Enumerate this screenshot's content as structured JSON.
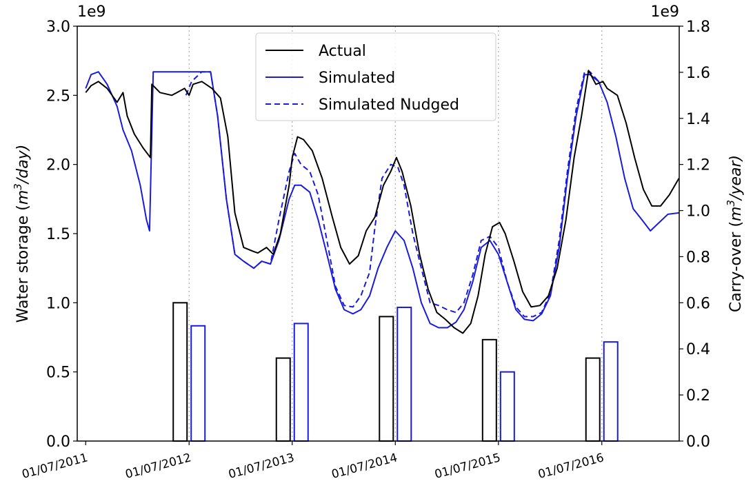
{
  "chart_data": {
    "type": "line",
    "xtick_labels": [
      "01/07/2011",
      "01/07/2012",
      "01/07/2013",
      "01/07/2014",
      "01/07/2015",
      "01/07/2016"
    ],
    "left_axis": {
      "label_main": "Water storage (",
      "label_unit": "m",
      "label_sup": "3",
      "label_rest": "/day)",
      "multiplier": "1e9",
      "ylim": [
        0,
        3.0
      ],
      "ticks": [
        "0.0",
        "0.5",
        "1.0",
        "1.5",
        "2.0",
        "2.5",
        "3.0"
      ]
    },
    "right_axis": {
      "label_main": "Carry-over (",
      "label_unit": "m",
      "label_sup": "3",
      "label_rest": "/year)",
      "multiplier": "1e9",
      "ylim": [
        0,
        1.8
      ],
      "ticks": [
        "0.0",
        "0.2",
        "0.4",
        "0.6",
        "0.8",
        "1.0",
        "1.2",
        "1.4",
        "1.6",
        "1.8"
      ]
    },
    "legend": {
      "position": "top-center",
      "entries": [
        "Actual",
        "Simulated",
        "Simulated Nudged"
      ]
    },
    "colors": {
      "actual": "#000000",
      "simulated": "#1a1adb"
    },
    "series": [
      {
        "name": "Actual",
        "style": "solid",
        "x": [
          "2011-07-01",
          "2011-07-20",
          "2011-08-15",
          "2011-09-15",
          "2011-10-20",
          "2011-11-10",
          "2011-11-25",
          "2011-12-20",
          "2012-01-20",
          "2012-02-15",
          "2012-02-20",
          "2012-03-20",
          "2012-05-01",
          "2012-06-15",
          "2012-07-01",
          "2012-07-15",
          "2012-08-15",
          "2012-09-20",
          "2012-10-20",
          "2012-11-15",
          "2012-12-10",
          "2013-01-10",
          "2013-02-15",
          "2013-03-01",
          "2013-04-01",
          "2013-04-25",
          "2013-05-20",
          "2013-06-20",
          "2013-07-01",
          "2013-07-20",
          "2013-08-10",
          "2013-09-10",
          "2013-10-15",
          "2013-11-20",
          "2013-12-20",
          "2014-01-20",
          "2014-02-20",
          "2014-03-20",
          "2014-04-20",
          "2014-05-20",
          "2014-06-15",
          "2014-07-05",
          "2014-07-25",
          "2014-08-25",
          "2014-09-25",
          "2014-10-25",
          "2014-11-25",
          "2014-12-25",
          "2015-01-25",
          "2015-02-25",
          "2015-03-25",
          "2015-04-20",
          "2015-05-15",
          "2015-06-10",
          "2015-07-05",
          "2015-07-25",
          "2015-08-25",
          "2015-09-25",
          "2015-10-25",
          "2015-11-25",
          "2015-12-25",
          "2016-01-25",
          "2016-02-25",
          "2016-03-25",
          "2016-04-20",
          "2016-05-15",
          "2016-06-10",
          "2016-07-05",
          "2016-07-20",
          "2016-08-25",
          "2016-09-25",
          "2016-10-25",
          "2016-11-25",
          "2016-12-25",
          "2017-01-25",
          "2017-02-25",
          "2017-03-31"
        ],
        "y": [
          2.52,
          2.57,
          2.6,
          2.55,
          2.45,
          2.52,
          2.35,
          2.22,
          2.12,
          2.05,
          2.58,
          2.52,
          2.5,
          2.55,
          2.5,
          2.58,
          2.6,
          2.55,
          2.48,
          2.2,
          1.65,
          1.4,
          1.37,
          1.36,
          1.4,
          1.35,
          1.5,
          1.85,
          2.05,
          2.2,
          2.18,
          2.1,
          1.9,
          1.62,
          1.4,
          1.28,
          1.34,
          1.52,
          1.62,
          1.85,
          1.95,
          2.05,
          1.95,
          1.7,
          1.35,
          1.1,
          0.93,
          0.88,
          0.82,
          0.78,
          0.85,
          1.05,
          1.35,
          1.55,
          1.58,
          1.5,
          1.3,
          1.08,
          0.97,
          0.98,
          1.05,
          1.25,
          1.6,
          2.05,
          2.35,
          2.68,
          2.58,
          2.6,
          2.55,
          2.5,
          2.3,
          2.05,
          1.82,
          1.7,
          1.7,
          1.78,
          1.9
        ]
      },
      {
        "name": "Simulated",
        "style": "solid",
        "x": [
          "2011-07-01",
          "2011-07-20",
          "2011-08-15",
          "2011-09-15",
          "2011-10-20",
          "2011-11-10",
          "2011-12-10",
          "2012-01-10",
          "2012-02-01",
          "2012-02-12",
          "2012-02-25",
          "2012-04-15",
          "2012-07-01",
          "2012-08-15",
          "2012-09-15",
          "2012-10-10",
          "2012-11-10",
          "2012-12-10",
          "2013-01-10",
          "2013-02-15",
          "2013-03-15",
          "2013-04-15",
          "2013-05-15",
          "2013-06-20",
          "2013-07-10",
          "2013-08-01",
          "2013-09-01",
          "2013-10-01",
          "2013-11-01",
          "2013-12-01",
          "2014-01-01",
          "2014-02-01",
          "2014-03-01",
          "2014-04-01",
          "2014-05-01",
          "2014-06-01",
          "2014-07-01",
          "2014-08-01",
          "2014-09-01",
          "2014-10-01",
          "2014-11-01",
          "2014-12-01",
          "2015-01-01",
          "2015-02-01",
          "2015-03-01",
          "2015-04-01",
          "2015-05-01",
          "2015-06-01",
          "2015-07-01",
          "2015-08-01",
          "2015-09-01",
          "2015-10-01",
          "2015-11-01",
          "2015-12-01",
          "2016-01-01",
          "2016-02-01",
          "2016-03-01",
          "2016-04-01",
          "2016-05-01",
          "2016-05-20",
          "2016-06-20",
          "2016-07-20",
          "2016-08-20",
          "2016-09-20",
          "2016-10-20",
          "2016-11-20",
          "2016-12-20",
          "2017-01-20",
          "2017-02-20",
          "2017-03-31"
        ],
        "y": [
          2.55,
          2.65,
          2.67,
          2.58,
          2.42,
          2.25,
          2.1,
          1.85,
          1.6,
          1.52,
          2.67,
          2.67,
          2.67,
          2.67,
          2.67,
          2.35,
          1.75,
          1.35,
          1.3,
          1.25,
          1.3,
          1.28,
          1.45,
          1.75,
          1.85,
          1.85,
          1.8,
          1.6,
          1.35,
          1.1,
          0.95,
          0.92,
          0.95,
          1.05,
          1.25,
          1.4,
          1.52,
          1.45,
          1.25,
          1.0,
          0.85,
          0.82,
          0.82,
          0.86,
          0.95,
          1.15,
          1.4,
          1.45,
          1.35,
          1.15,
          0.95,
          0.88,
          0.87,
          0.92,
          1.05,
          1.4,
          1.9,
          2.35,
          2.65,
          2.65,
          2.6,
          2.45,
          2.2,
          1.9,
          1.68,
          1.6,
          1.52,
          1.58,
          1.64,
          1.65
        ]
      },
      {
        "name": "Simulated Nudged",
        "style": "dashed",
        "x": [
          "2012-06-20",
          "2012-07-10",
          "2012-08-15",
          "2012-09-15",
          "2012-10-10",
          "2012-11-10",
          "2012-12-10",
          "2013-01-10",
          "2013-02-15",
          "2013-03-15",
          "2013-04-15",
          "2013-05-15",
          "2013-06-20",
          "2013-07-10",
          "2013-08-01",
          "2013-09-01",
          "2013-10-01",
          "2013-11-01",
          "2013-12-01",
          "2014-01-01",
          "2014-02-01",
          "2014-03-01",
          "2014-04-01",
          "2014-04-20",
          "2014-05-15",
          "2014-06-15",
          "2014-07-10",
          "2014-08-01",
          "2014-09-01",
          "2014-10-01",
          "2014-11-01",
          "2014-12-01",
          "2015-01-01",
          "2015-02-01",
          "2015-03-01",
          "2015-04-01",
          "2015-05-01",
          "2015-06-01",
          "2015-07-01",
          "2015-08-01",
          "2015-09-01",
          "2015-10-01",
          "2015-11-01",
          "2015-12-01",
          "2016-01-01",
          "2016-02-01",
          "2016-03-01",
          "2016-04-01",
          "2016-05-01",
          "2016-05-20",
          "2016-06-20"
        ],
        "y": [
          2.5,
          2.6,
          2.67,
          2.67,
          2.35,
          1.75,
          1.35,
          1.3,
          1.25,
          1.3,
          1.28,
          1.6,
          1.95,
          2.08,
          2.0,
          1.95,
          1.78,
          1.45,
          1.12,
          0.98,
          0.97,
          1.05,
          1.22,
          1.55,
          1.9,
          2.0,
          1.98,
          1.85,
          1.5,
          1.25,
          1.0,
          0.98,
          0.95,
          0.93,
          1.0,
          1.2,
          1.45,
          1.48,
          1.4,
          1.15,
          0.97,
          0.9,
          0.9,
          0.93,
          1.07,
          1.45,
          1.95,
          2.4,
          2.67,
          2.67,
          2.6
        ]
      }
    ],
    "bars": {
      "axis": "right",
      "groups": [
        {
          "year": "2012",
          "actual": 0.6,
          "simulated": 0.5
        },
        {
          "year": "2013",
          "actual": 0.36,
          "simulated": 0.51
        },
        {
          "year": "2014",
          "actual": 0.54,
          "simulated": 0.58
        },
        {
          "year": "2015",
          "actual": 0.44,
          "simulated": 0.3
        },
        {
          "year": "2016",
          "actual": 0.36,
          "simulated": 0.43
        }
      ]
    }
  }
}
